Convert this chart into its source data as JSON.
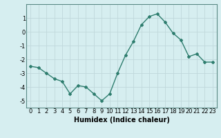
{
  "x": [
    0,
    1,
    2,
    3,
    4,
    5,
    6,
    7,
    8,
    9,
    10,
    11,
    12,
    13,
    14,
    15,
    16,
    17,
    18,
    19,
    20,
    21,
    22,
    23
  ],
  "y": [
    -2.5,
    -2.6,
    -3.0,
    -3.4,
    -3.6,
    -4.5,
    -3.9,
    -4.0,
    -4.5,
    -5.0,
    -4.5,
    -3.0,
    -1.7,
    -0.7,
    0.5,
    1.1,
    1.3,
    0.7,
    -0.1,
    -0.6,
    -1.8,
    -1.6,
    -2.2,
    -2.2
  ],
  "line_color": "#2e7d6e",
  "marker": "D",
  "marker_size": 2,
  "bg_color": "#d6eef0",
  "grid_color": "#c0d8db",
  "xlabel": "Humidex (Indice chaleur)",
  "xlabel_fontsize": 7,
  "tick_fontsize": 6,
  "xlim": [
    -0.5,
    23.5
  ],
  "ylim": [
    -5.5,
    2.0
  ],
  "yticks": [
    -5,
    -4,
    -3,
    -2,
    -1,
    0,
    1
  ],
  "xticks": [
    0,
    1,
    2,
    3,
    4,
    5,
    6,
    7,
    8,
    9,
    10,
    11,
    12,
    13,
    14,
    15,
    16,
    17,
    18,
    19,
    20,
    21,
    22,
    23
  ]
}
